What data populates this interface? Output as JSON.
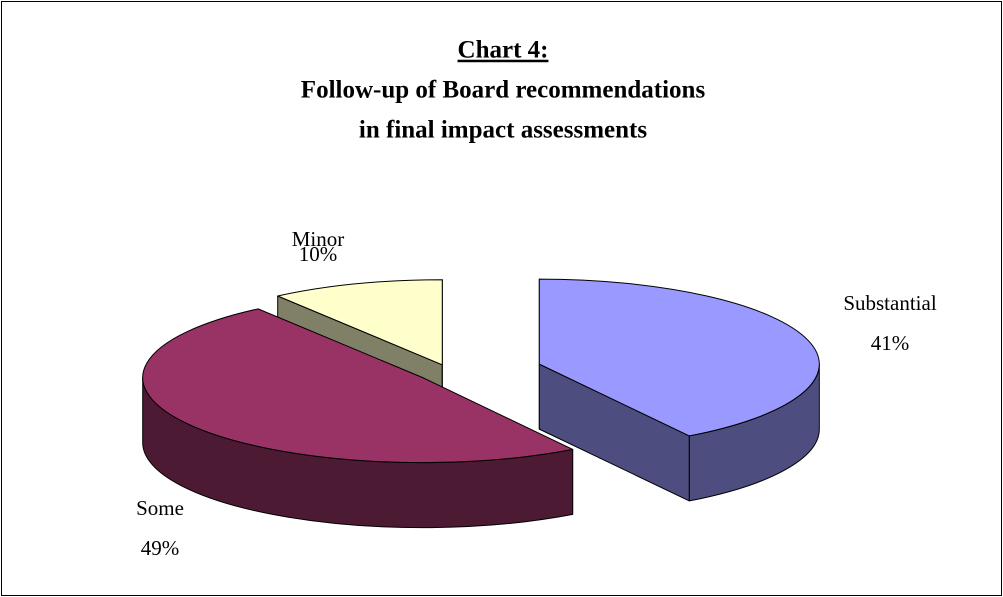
{
  "chart_data": {
    "type": "pie3d",
    "title": "Chart 4:",
    "subtitle": [
      "Follow-up of Board recommendations",
      "in final impact assessments"
    ],
    "categories": [
      "Substantial",
      "Some",
      "Minor"
    ],
    "values": [
      41,
      49,
      10
    ],
    "value_labels": [
      "41%",
      "49%",
      "10%"
    ],
    "colors": [
      "#9999ff",
      "#993366",
      "#ffffcc"
    ],
    "side_colors": [
      "#4d4d80",
      "#4d1a33",
      "#808066"
    ]
  }
}
